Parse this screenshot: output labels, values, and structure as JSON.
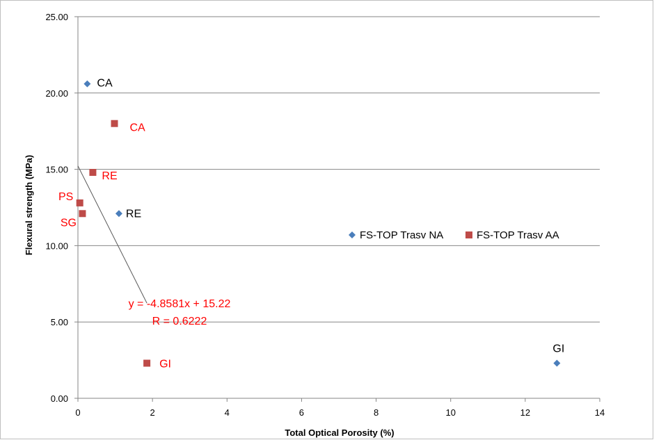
{
  "chart_data": {
    "type": "scatter",
    "title": "",
    "xlabel": "Total Optical Porosity (%)",
    "ylabel": "Flexural strength (MPa)",
    "xlim": [
      0,
      14
    ],
    "ylim": [
      0,
      25
    ],
    "x_ticks": [
      "0",
      "2",
      "4",
      "6",
      "8",
      "10",
      "12",
      "14"
    ],
    "y_ticks": [
      "0.00",
      "5.00",
      "10.00",
      "15.00",
      "20.00",
      "25.00"
    ],
    "grid": "horizontal",
    "legend_position": "right-middle",
    "series": [
      {
        "name": "FS-TOP Trasv NA",
        "marker": "diamond",
        "color": "#4a7ebb",
        "label_color": "#000000",
        "points": [
          {
            "x": 0.25,
            "y": 20.6,
            "label": "CA"
          },
          {
            "x": 1.1,
            "y": 12.1,
            "label": "RE"
          },
          {
            "x": 12.85,
            "y": 2.3,
            "label": "GI"
          }
        ]
      },
      {
        "name": "FS-TOP Trasv AA",
        "marker": "square",
        "color": "#be4b48",
        "label_color": "#ff0000",
        "points": [
          {
            "x": 0.98,
            "y": 18.0,
            "label": "CA"
          },
          {
            "x": 0.4,
            "y": 14.8,
            "label": "RE"
          },
          {
            "x": 0.05,
            "y": 12.8,
            "label": "PS"
          },
          {
            "x": 0.12,
            "y": 12.1,
            "label": "SG"
          },
          {
            "x": 1.85,
            "y": 2.3,
            "label": "GI"
          }
        ]
      }
    ],
    "trendline": {
      "series": "FS-TOP Trasv AA",
      "slope": -4.8581,
      "intercept": 15.22,
      "x_range": [
        0,
        1.85
      ],
      "equation": "y = -4.8581x + 15.22",
      "r_text": "R = 0.6222",
      "color": "#595959",
      "label_color": "#ff0000"
    }
  }
}
